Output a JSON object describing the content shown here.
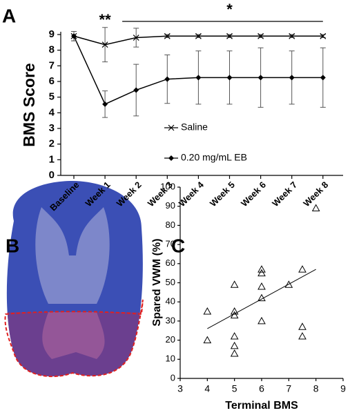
{
  "panel_labels": [
    "A",
    "B",
    "C"
  ],
  "chart_data": [
    {
      "type": "line",
      "ylabel": "BMS Score",
      "categories": [
        "Baseline",
        "Week 1",
        "Week 2",
        "Week 3",
        "Week 4",
        "Week 5",
        "Week 6",
        "Week 7",
        "Week 8"
      ],
      "ylim": [
        0,
        9
      ],
      "yticks": [
        0,
        1,
        2,
        3,
        4,
        5,
        6,
        7,
        8,
        9
      ],
      "legend": "center",
      "annotations": [
        "**",
        "*"
      ],
      "series": [
        {
          "name": "Saline",
          "color": "#000000",
          "marker": "x",
          "values": [
            8.9,
            8.35,
            8.8,
            8.9,
            8.9,
            8.9,
            8.9,
            8.9,
            8.9
          ],
          "errors": [
            0.3,
            1.1,
            0.6,
            0.1,
            0.1,
            0.1,
            0.1,
            0.1,
            0.1
          ]
        },
        {
          "name": "0.20 mg/mL EB",
          "color": "#000000",
          "marker": "diamond",
          "values": [
            8.9,
            4.55,
            5.45,
            6.15,
            6.25,
            6.25,
            6.25,
            6.25,
            6.25
          ],
          "errors": [
            0.3,
            0.85,
            1.65,
            1.55,
            1.7,
            1.7,
            1.9,
            1.7,
            1.9
          ]
        }
      ]
    },
    {
      "type": "scatter",
      "xlabel": "Terminal BMS",
      "ylabel": "Spared VWM (%)",
      "xlim": [
        3,
        9
      ],
      "xticks": [
        3,
        4,
        5,
        6,
        7,
        8,
        9
      ],
      "ylim": [
        0,
        100
      ],
      "yticks": [
        0,
        10,
        20,
        30,
        40,
        50,
        60,
        70,
        80,
        90,
        100
      ],
      "color": "#000000",
      "marker": "triangle-open",
      "x": [
        4,
        4,
        5,
        5,
        5,
        5,
        5,
        5,
        6,
        6,
        6,
        6,
        6,
        7,
        7.5,
        7.5,
        7.5,
        8
      ],
      "y": [
        35,
        20,
        49,
        35,
        33,
        22,
        17,
        13,
        57,
        55,
        48,
        42,
        30,
        49,
        57,
        27,
        22,
        89
      ],
      "trendline": {
        "x": [
          4,
          8
        ],
        "y": [
          26,
          57
        ]
      }
    }
  ]
}
